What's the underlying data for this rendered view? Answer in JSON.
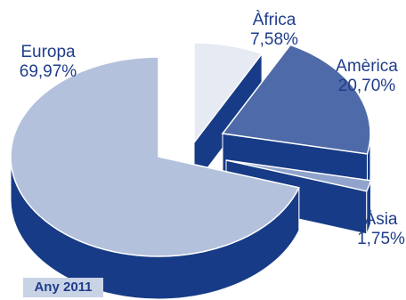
{
  "chart_data": {
    "type": "pie",
    "title": "",
    "categories": [
      "Europa",
      "Àfrica",
      "Amèrica",
      "Àsia"
    ],
    "values": [
      69.97,
      7.58,
      20.7,
      1.75
    ],
    "value_labels": [
      "69,97%",
      "7,58%",
      "20,70%",
      "1,75%"
    ],
    "colors": [
      "#b4c1dc",
      "#e5eaf3",
      "#4e6aa8",
      "#8fa3cc"
    ],
    "side_color": "#173b86",
    "exploded": true,
    "three_d": true,
    "legend": "none"
  },
  "badge": {
    "text": "Any 2011",
    "background": "#c9d3e6"
  }
}
